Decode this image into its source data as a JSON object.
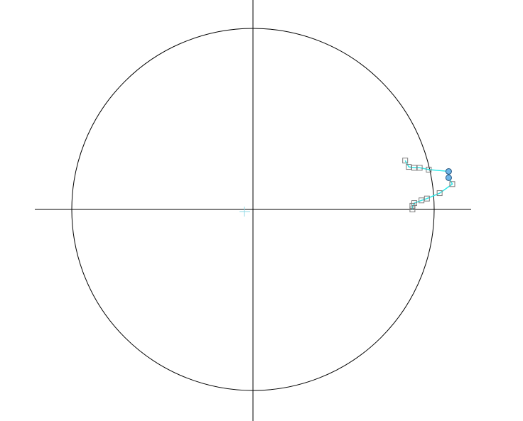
{
  "colors": {
    "background": "#ffffff",
    "stroke": "#000000",
    "curve": "#2ee6e6",
    "marker_stroke": "#7a7a7a",
    "selected_marker_fill": "#6fb6e8",
    "selected_marker_stroke": "#1f4f7a",
    "origin_cursor": "#8fd8e6"
  },
  "diagram": {
    "circle": {
      "radius": 1.0
    },
    "curve_points": [
      [
        0.84,
        0.27
      ],
      [
        0.86,
        0.235
      ],
      [
        0.89,
        0.23
      ],
      [
        0.92,
        0.23
      ],
      [
        0.97,
        0.22
      ],
      [
        1.08,
        0.21
      ],
      [
        1.08,
        0.175
      ],
      [
        1.1,
        0.14
      ],
      [
        1.03,
        0.09
      ],
      [
        0.96,
        0.06
      ],
      [
        0.93,
        0.05
      ],
      [
        0.89,
        0.035
      ],
      [
        0.88,
        0.02
      ],
      [
        0.88,
        0.0
      ]
    ],
    "selected_point_indices": [
      5,
      6
    ]
  }
}
